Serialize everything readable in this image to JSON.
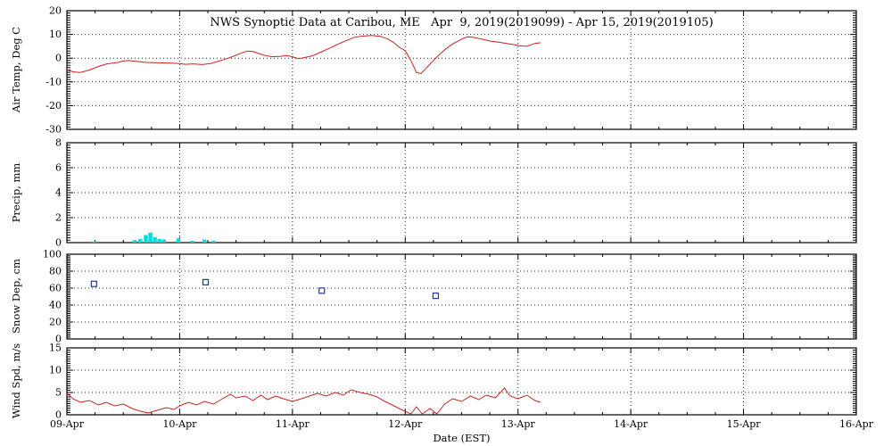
{
  "chart": {
    "title": "NWS Synoptic Data at Caribou, ME   Apr  9, 2019(2019099) - Apr 15, 2019(2019105)",
    "xlabel": "Date (EST)"
  },
  "colors": {
    "frame": "#000000",
    "temp_line": "#cc2222",
    "precip_bar": "#00dddd",
    "snow_marker": "#2233aa",
    "wind_line": "#cc2222",
    "background": "#ffffff"
  },
  "x_axis": {
    "lim": [
      0,
      7
    ],
    "minor_step": 0.25,
    "ticks": [
      {
        "pos": 0,
        "label": "09-Apr"
      },
      {
        "pos": 1,
        "label": "10-Apr"
      },
      {
        "pos": 2,
        "label": "11-Apr"
      },
      {
        "pos": 3,
        "label": "12-Apr"
      },
      {
        "pos": 4,
        "label": "13-Apr"
      },
      {
        "pos": 5,
        "label": "14-Apr"
      },
      {
        "pos": 6,
        "label": "15-Apr"
      },
      {
        "pos": 7,
        "label": "16-Apr"
      }
    ]
  },
  "chart_data": [
    {
      "type": "line",
      "name": "air-temp",
      "ylabel": "Air Temp, Deg C",
      "ylim": [
        -30,
        20
      ],
      "yticks": [
        -30,
        -20,
        -10,
        0,
        10,
        20
      ],
      "minor_step": 1,
      "color": "#cc2222",
      "points": [
        [
          0.0,
          -5
        ],
        [
          0.06,
          -5.8
        ],
        [
          0.12,
          -6
        ],
        [
          0.2,
          -5
        ],
        [
          0.28,
          -3.5
        ],
        [
          0.35,
          -2.5
        ],
        [
          0.45,
          -1.8
        ],
        [
          0.5,
          -1.2
        ],
        [
          0.55,
          -1
        ],
        [
          0.62,
          -1.4
        ],
        [
          0.7,
          -1.8
        ],
        [
          0.78,
          -1.9
        ],
        [
          0.85,
          -2
        ],
        [
          0.92,
          -2.1
        ],
        [
          1.0,
          -2.3
        ],
        [
          1.05,
          -2.6
        ],
        [
          1.12,
          -2.4
        ],
        [
          1.2,
          -2.7
        ],
        [
          1.28,
          -2.2
        ],
        [
          1.35,
          -1.2
        ],
        [
          1.42,
          -0.2
        ],
        [
          1.5,
          1.2
        ],
        [
          1.55,
          2.2
        ],
        [
          1.6,
          3
        ],
        [
          1.65,
          2.8
        ],
        [
          1.7,
          2
        ],
        [
          1.75,
          1.2
        ],
        [
          1.82,
          0.6
        ],
        [
          1.9,
          0.8
        ],
        [
          1.95,
          1.1
        ],
        [
          2.0,
          0.6
        ],
        [
          2.05,
          -0.2
        ],
        [
          2.1,
          0.2
        ],
        [
          2.18,
          1
        ],
        [
          2.25,
          2.5
        ],
        [
          2.32,
          4
        ],
        [
          2.4,
          5.8
        ],
        [
          2.48,
          7.5
        ],
        [
          2.55,
          8.8
        ],
        [
          2.62,
          9.3
        ],
        [
          2.7,
          9.6
        ],
        [
          2.78,
          9.2
        ],
        [
          2.85,
          8
        ],
        [
          2.9,
          6.5
        ],
        [
          2.95,
          4.5
        ],
        [
          3.0,
          3.2
        ],
        [
          3.05,
          -1
        ],
        [
          3.1,
          -6
        ],
        [
          3.14,
          -6.5
        ],
        [
          3.2,
          -3.5
        ],
        [
          3.28,
          0.5
        ],
        [
          3.35,
          3.5
        ],
        [
          3.42,
          6
        ],
        [
          3.5,
          8
        ],
        [
          3.55,
          9
        ],
        [
          3.6,
          8.8
        ],
        [
          3.68,
          8
        ],
        [
          3.75,
          7.2
        ],
        [
          3.82,
          6.8
        ],
        [
          3.9,
          6.2
        ],
        [
          3.95,
          5.8
        ],
        [
          4.02,
          5.2
        ],
        [
          4.08,
          5
        ],
        [
          4.15,
          6.2
        ],
        [
          4.2,
          6.5
        ]
      ]
    },
    {
      "type": "bar",
      "name": "precip",
      "ylabel": "Precip, mm",
      "ylim": [
        0,
        8
      ],
      "yticks": [
        0,
        2,
        4,
        6,
        8
      ],
      "minor_step": 0.2,
      "color": "#00dddd",
      "bar_width_days": 0.035,
      "bars": [
        [
          0.24,
          0.1
        ],
        [
          0.6,
          0.2
        ],
        [
          0.65,
          0.3
        ],
        [
          0.7,
          0.6
        ],
        [
          0.74,
          0.8
        ],
        [
          0.78,
          0.45
        ],
        [
          0.82,
          0.3
        ],
        [
          0.86,
          0.25
        ],
        [
          0.99,
          0.35
        ],
        [
          1.11,
          0.15
        ],
        [
          1.22,
          0.25
        ],
        [
          1.3,
          0.15
        ]
      ]
    },
    {
      "type": "scatter",
      "name": "snow-depth",
      "ylabel": "Snow Dep, cm",
      "ylim": [
        0,
        100
      ],
      "yticks": [
        0,
        20,
        40,
        60,
        80,
        100
      ],
      "minor_step": 2,
      "color": "#2233aa",
      "points": [
        [
          0.24,
          65
        ],
        [
          1.23,
          67
        ],
        [
          2.26,
          57
        ],
        [
          3.27,
          51
        ]
      ]
    },
    {
      "type": "line",
      "name": "wind-speed",
      "ylabel": "Wind Spd, m/s",
      "ylim": [
        0,
        15
      ],
      "yticks": [
        0,
        5,
        10,
        15
      ],
      "minor_step": 0.5,
      "color": "#cc2222",
      "points": [
        [
          0.0,
          4.8
        ],
        [
          0.06,
          3.5
        ],
        [
          0.12,
          2.8
        ],
        [
          0.2,
          3.2
        ],
        [
          0.28,
          2.2
        ],
        [
          0.35,
          2.8
        ],
        [
          0.42,
          2
        ],
        [
          0.5,
          2.4
        ],
        [
          0.58,
          1.4
        ],
        [
          0.65,
          0.8
        ],
        [
          0.72,
          0.4
        ],
        [
          0.8,
          1
        ],
        [
          0.88,
          1.6
        ],
        [
          0.95,
          1.2
        ],
        [
          1.0,
          2
        ],
        [
          1.08,
          2.8
        ],
        [
          1.15,
          2.2
        ],
        [
          1.22,
          3
        ],
        [
          1.3,
          2.4
        ],
        [
          1.38,
          3.6
        ],
        [
          1.45,
          4.6
        ],
        [
          1.5,
          3.8
        ],
        [
          1.58,
          4.2
        ],
        [
          1.65,
          3.2
        ],
        [
          1.72,
          4.4
        ],
        [
          1.78,
          3.4
        ],
        [
          1.85,
          4.2
        ],
        [
          1.92,
          3.6
        ],
        [
          2.0,
          3
        ],
        [
          2.08,
          3.6
        ],
        [
          2.15,
          4.2
        ],
        [
          2.22,
          4.8
        ],
        [
          2.3,
          4.2
        ],
        [
          2.38,
          5
        ],
        [
          2.45,
          4.4
        ],
        [
          2.52,
          5.6
        ],
        [
          2.6,
          5
        ],
        [
          2.68,
          4.6
        ],
        [
          2.75,
          4
        ],
        [
          2.82,
          3
        ],
        [
          2.9,
          2
        ],
        [
          2.98,
          1
        ],
        [
          3.05,
          0.2
        ],
        [
          3.1,
          1.8
        ],
        [
          3.15,
          0.2
        ],
        [
          3.22,
          1.4
        ],
        [
          3.28,
          0.2
        ],
        [
          3.35,
          2.4
        ],
        [
          3.42,
          3.6
        ],
        [
          3.5,
          3
        ],
        [
          3.58,
          4.2
        ],
        [
          3.65,
          3.4
        ],
        [
          3.72,
          4.4
        ],
        [
          3.8,
          3.8
        ],
        [
          3.88,
          6
        ],
        [
          3.93,
          4.2
        ],
        [
          4.0,
          3.6
        ],
        [
          4.08,
          4.4
        ],
        [
          4.15,
          3.2
        ],
        [
          4.2,
          2.8
        ]
      ]
    }
  ]
}
